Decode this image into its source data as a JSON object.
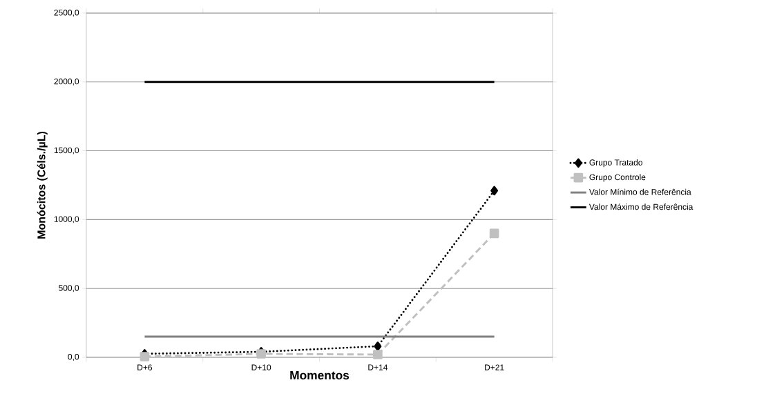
{
  "chart_data": {
    "type": "line",
    "xlabel": "Momentos",
    "ylabel": "Monócitos (Céls./µL)",
    "categories": [
      "D+6",
      "D+10",
      "D+14",
      "D+21"
    ],
    "series": [
      {
        "name": "Grupo Tratado",
        "color": "#000000",
        "marker": "diamond",
        "line_style": "dotted",
        "values": [
          25,
          40,
          80,
          1210
        ]
      },
      {
        "name": "Grupo Controle",
        "color": "#c0c0c0",
        "marker": "square",
        "line_style": "dashed",
        "values": [
          5,
          25,
          20,
          900
        ]
      },
      {
        "name": "Valor Mínimo de Referência",
        "color": "#808080",
        "marker": "none",
        "line_style": "solid",
        "values": [
          150,
          150,
          150,
          150
        ]
      },
      {
        "name": "Valor Máximo de Referência",
        "color": "#000000",
        "marker": "none",
        "line_style": "solid",
        "values": [
          2000,
          2000,
          2000,
          2000
        ]
      }
    ],
    "ylim": [
      0,
      2500
    ],
    "yticks": [
      {
        "value": 0,
        "label": "0,0"
      },
      {
        "value": 500,
        "label": "500,0"
      },
      {
        "value": 1000,
        "label": "1000,0"
      },
      {
        "value": 1500,
        "label": "1500,0"
      },
      {
        "value": 2000,
        "label": "2000,0"
      },
      {
        "value": 2500,
        "label": "2500,0"
      }
    ],
    "grid": "y",
    "legend": "right"
  }
}
